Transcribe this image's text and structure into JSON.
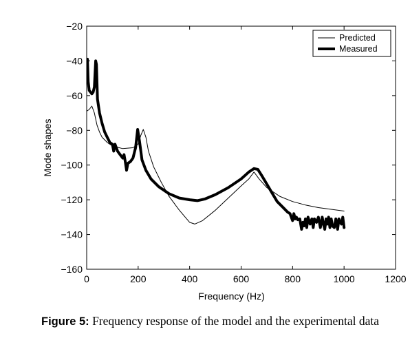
{
  "chart_data": {
    "type": "line",
    "title": "",
    "xlabel": "Frequency (Hz)",
    "ylabel": "Mode shapes",
    "xlim": [
      0,
      1200
    ],
    "ylim": [
      -160,
      -20
    ],
    "xticks": [
      0,
      200,
      400,
      600,
      800,
      1000,
      1200
    ],
    "yticks": [
      -20,
      -40,
      -60,
      -80,
      -100,
      -120,
      -140,
      -160
    ],
    "xtick_labels": [
      "0",
      "200",
      "400",
      "600",
      "800",
      "1000",
      "1200"
    ],
    "ytick_labels": [
      "−20",
      "−40",
      "−60",
      "−80",
      "−100",
      "−120",
      "−140",
      "−160"
    ],
    "grid": false,
    "legend_position": "top-right",
    "series": [
      {
        "name": "Predicted",
        "style": "thin",
        "color": "#000000",
        "points": [
          [
            0,
            -69
          ],
          [
            10,
            -68
          ],
          [
            20,
            -66
          ],
          [
            30,
            -70
          ],
          [
            40,
            -77
          ],
          [
            50,
            -81
          ],
          [
            60,
            -84
          ],
          [
            80,
            -87
          ],
          [
            100,
            -89
          ],
          [
            140,
            -90.5
          ],
          [
            180,
            -90
          ],
          [
            200,
            -88
          ],
          [
            210,
            -83
          ],
          [
            220,
            -79.5
          ],
          [
            230,
            -84
          ],
          [
            240,
            -92
          ],
          [
            260,
            -101
          ],
          [
            290,
            -110
          ],
          [
            320,
            -118
          ],
          [
            360,
            -126
          ],
          [
            400,
            -133
          ],
          [
            420,
            -134
          ],
          [
            450,
            -132
          ],
          [
            500,
            -126
          ],
          [
            550,
            -119
          ],
          [
            600,
            -112
          ],
          [
            630,
            -108
          ],
          [
            650,
            -104
          ],
          [
            670,
            -108
          ],
          [
            700,
            -113
          ],
          [
            750,
            -118
          ],
          [
            800,
            -121
          ],
          [
            850,
            -123
          ],
          [
            900,
            -124.5
          ],
          [
            950,
            -125.5
          ],
          [
            1000,
            -126.5
          ]
        ]
      },
      {
        "name": "Measured",
        "style": "thick",
        "color": "#000000",
        "points": [
          [
            3,
            -39
          ],
          [
            6,
            -52
          ],
          [
            10,
            -57
          ],
          [
            15,
            -58
          ],
          [
            20,
            -59
          ],
          [
            25,
            -58
          ],
          [
            30,
            -55
          ],
          [
            35,
            -40
          ],
          [
            38,
            -42
          ],
          [
            42,
            -62
          ],
          [
            50,
            -70
          ],
          [
            60,
            -76
          ],
          [
            70,
            -81
          ],
          [
            80,
            -84
          ],
          [
            90,
            -87
          ],
          [
            100,
            -88
          ],
          [
            105,
            -92
          ],
          [
            110,
            -88
          ],
          [
            120,
            -92
          ],
          [
            130,
            -94
          ],
          [
            140,
            -96
          ],
          [
            145,
            -94
          ],
          [
            150,
            -98
          ],
          [
            155,
            -103
          ],
          [
            160,
            -99
          ],
          [
            170,
            -98
          ],
          [
            180,
            -96
          ],
          [
            190,
            -90
          ],
          [
            198,
            -79.5
          ],
          [
            205,
            -86
          ],
          [
            215,
            -97
          ],
          [
            230,
            -103
          ],
          [
            250,
            -108
          ],
          [
            280,
            -112.5
          ],
          [
            320,
            -116.5
          ],
          [
            360,
            -119
          ],
          [
            400,
            -120
          ],
          [
            430,
            -120.5
          ],
          [
            460,
            -119.5
          ],
          [
            500,
            -117
          ],
          [
            550,
            -113
          ],
          [
            600,
            -108
          ],
          [
            630,
            -104
          ],
          [
            650,
            -102
          ],
          [
            665,
            -102.5
          ],
          [
            680,
            -106
          ],
          [
            700,
            -111
          ],
          [
            720,
            -116
          ],
          [
            740,
            -121
          ],
          [
            760,
            -124
          ],
          [
            780,
            -127
          ],
          [
            790,
            -128
          ],
          [
            800,
            -132
          ],
          [
            805,
            -128
          ],
          [
            810,
            -131
          ],
          [
            815,
            -130
          ],
          [
            820,
            -131.5
          ],
          [
            828,
            -131
          ],
          [
            835,
            -137
          ],
          [
            840,
            -133
          ],
          [
            845,
            -135
          ],
          [
            850,
            -131
          ],
          [
            855,
            -136
          ],
          [
            860,
            -130
          ],
          [
            868,
            -134
          ],
          [
            875,
            -131
          ],
          [
            880,
            -136
          ],
          [
            885,
            -131
          ],
          [
            893,
            -133
          ],
          [
            900,
            -130
          ],
          [
            908,
            -136
          ],
          [
            915,
            -130
          ],
          [
            920,
            -134
          ],
          [
            925,
            -137
          ],
          [
            930,
            -131
          ],
          [
            935,
            -134
          ],
          [
            940,
            -130
          ],
          [
            945,
            -136
          ],
          [
            950,
            -131
          ],
          [
            955,
            -135
          ],
          [
            962,
            -136
          ],
          [
            968,
            -131
          ],
          [
            975,
            -137
          ],
          [
            980,
            -131
          ],
          [
            985,
            -133
          ],
          [
            990,
            -134
          ],
          [
            995,
            -130
          ],
          [
            1000,
            -136
          ]
        ]
      }
    ]
  },
  "caption": {
    "lead": "Figure 5:",
    "text": " Frequency response of the model and the experimental data"
  }
}
